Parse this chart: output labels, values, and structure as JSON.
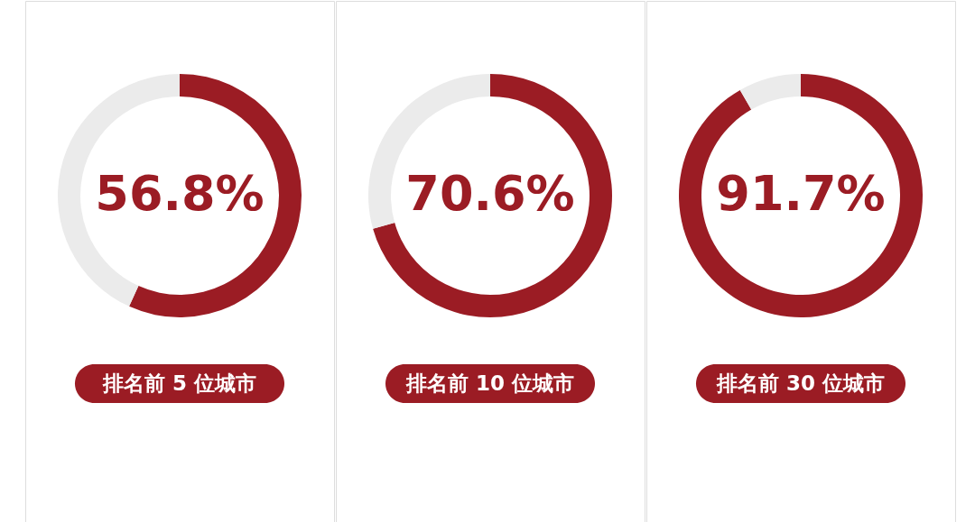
{
  "chart_data": [
    {
      "type": "donut",
      "title": "排名前 5 位城市",
      "categories": [
        null,
        null
      ],
      "values": [
        56.8,
        43.2
      ],
      "colors": [
        "#9b1c24",
        "#ebebeb"
      ],
      "value_labels": [
        "56.8%",
        null
      ]
    },
    {
      "type": "donut",
      "title": "排名前 10 位城市",
      "categories": [
        null,
        null
      ],
      "values": [
        70.6,
        29.4
      ],
      "colors": [
        "#9b1c24",
        "#ebebeb"
      ],
      "value_labels": [
        "70.6%",
        null
      ]
    },
    {
      "type": "donut",
      "title": "排名前 30 位城市",
      "categories": [
        null,
        null
      ],
      "values": [
        91.7,
        8.3
      ],
      "colors": [
        "#9b1c24",
        "#ebebeb"
      ],
      "value_labels": [
        "91.7%",
        null
      ]
    }
  ]
}
